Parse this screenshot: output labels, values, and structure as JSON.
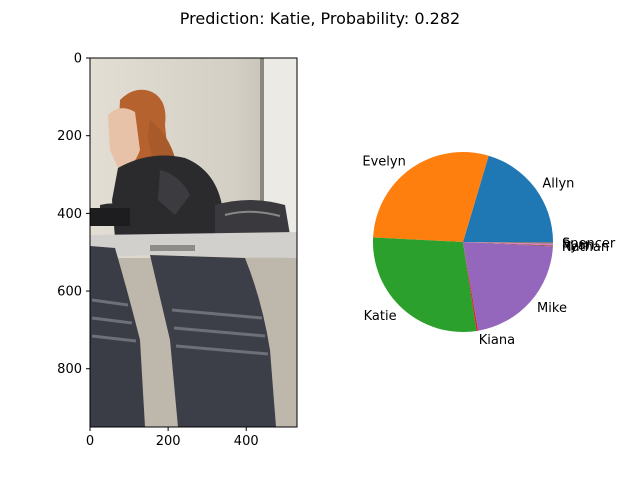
{
  "figure": {
    "title": "Prediction: Katie, Probability: 0.282"
  },
  "chart_data": [
    {
      "type": "image",
      "xlim": [
        0,
        530
      ],
      "ylim": [
        950,
        0
      ],
      "x_ticks": [
        "0",
        "200",
        "400"
      ],
      "x_tick_values": [
        0,
        200,
        400
      ],
      "y_ticks": [
        "0",
        "200",
        "400",
        "600",
        "800"
      ],
      "y_tick_values": [
        0,
        200,
        400,
        600,
        800
      ],
      "content": "photo of a person with long reddish hair in a dark jacket, seated at a white table with dark chairs in the foreground",
      "colors": {
        "wall": "#d9d4c8",
        "hair": "#b5622e",
        "jacket": "#2b2b2e",
        "table": "#d2d0cc",
        "chair": "#3a3d46"
      }
    },
    {
      "type": "pie",
      "labels": [
        "Allyn",
        "Evelyn",
        "Katie",
        "Kiana",
        "Mike",
        "Nathan",
        "Ryan",
        "Spencer"
      ],
      "values": [
        0.204,
        0.288,
        0.282,
        0.003,
        0.215,
        0.002,
        0.003,
        0.003
      ],
      "colors": [
        "#1f77b4",
        "#ff7f0e",
        "#2ca02c",
        "#d62728",
        "#9467bd",
        "#8c564b",
        "#e377c2",
        "#7f7f7f"
      ],
      "start_angle": 0,
      "counterclock": true
    }
  ]
}
